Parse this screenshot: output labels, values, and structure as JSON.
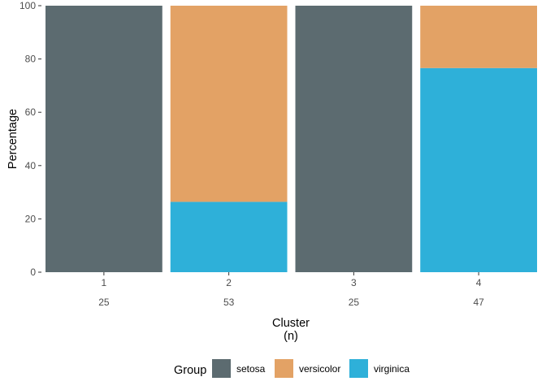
{
  "chart_data": {
    "type": "bar",
    "stacked": true,
    "categories": [
      "1",
      "2",
      "3",
      "4"
    ],
    "category_counts": [
      "25",
      "53",
      "25",
      "47"
    ],
    "series": [
      {
        "name": "virginica",
        "color": "#2eb0d9",
        "values": [
          0,
          26.4,
          0,
          76.6
        ]
      },
      {
        "name": "versicolor",
        "color": "#e3a265",
        "values": [
          0,
          73.6,
          0,
          23.4
        ]
      },
      {
        "name": "setosa",
        "color": "#5c6b70",
        "values": [
          100,
          0,
          100,
          0
        ]
      }
    ],
    "xlabel": "Cluster",
    "xlabel_sub": "(n)",
    "ylabel": "Percentage",
    "ylim": [
      0,
      100
    ],
    "yticks": [
      0,
      20,
      40,
      60,
      80,
      100
    ],
    "grid": false,
    "legend": {
      "title": "Group",
      "placement": "bottom",
      "entries": [
        {
          "label": "setosa",
          "color": "#5c6b70"
        },
        {
          "label": "versicolor",
          "color": "#e3a265"
        },
        {
          "label": "virginica",
          "color": "#2eb0d9"
        }
      ]
    }
  }
}
